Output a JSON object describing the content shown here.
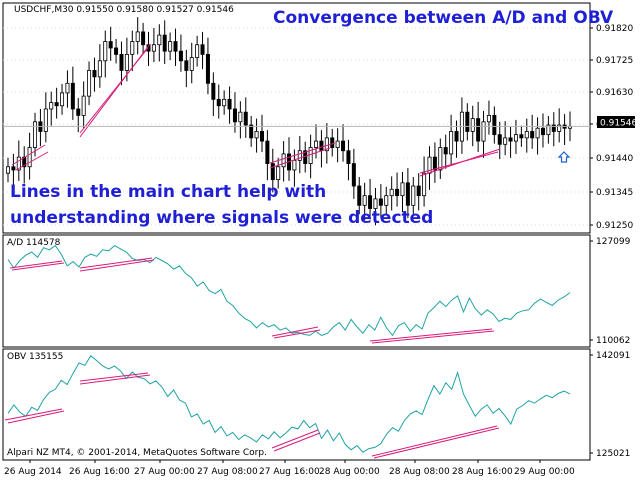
{
  "annotations": {
    "title": "Convergence between A/D and OBV",
    "note_line1": "Lines in the main chart help with",
    "note_line2": "understanding where signals were detected"
  },
  "price_panel": {
    "header": "USDCHF,M30  0.91550 0.91580 0.91527 0.91546",
    "current_price_label": "0.91546"
  },
  "ad_panel": {
    "header": "A/D 114578"
  },
  "obv_panel": {
    "header": "OBV 135155"
  },
  "footer_text": "Alpari NZ MT4, © 2001-2014, MetaQuotes Software Corp.",
  "colors": {
    "candle": "#000000",
    "indicator_line": "#1fa3a3",
    "trend_line": "#d81b7a",
    "annotation_text": "#1f1fd6",
    "arrow": "#1f5fcf"
  },
  "chart_data": [
    {
      "type": "candlestick",
      "symbol": "USDCHF",
      "timeframe": "M30",
      "ohlc_header": {
        "open": 0.9155,
        "high": 0.9158,
        "low": 0.91527,
        "close": 0.91546
      },
      "ylim": [
        0.9122,
        0.9193
      ],
      "yticks": [
        "0.91820",
        "0.91725",
        "0.91630",
        "0.91535",
        "0.91440",
        "0.91345",
        "0.91250"
      ],
      "current_price": 0.91546,
      "close_series": [
        0.9142,
        0.9141,
        0.9145,
        0.9142,
        0.9148,
        0.9156,
        0.9153,
        0.916,
        0.9162,
        0.9161,
        0.9165,
        0.9168,
        0.916,
        0.9158,
        0.9164,
        0.9172,
        0.917,
        0.9175,
        0.9181,
        0.9179,
        0.9177,
        0.9172,
        0.9177,
        0.9181,
        0.9184,
        0.918,
        0.9178,
        0.918,
        0.9183,
        0.9178,
        0.9181,
        0.9178,
        0.9175,
        0.9172,
        0.9176,
        0.918,
        0.9177,
        0.9168,
        0.9163,
        0.9161,
        0.9163,
        0.916,
        0.9156,
        0.9159,
        0.9155,
        0.9151,
        0.9153,
        0.915,
        0.9143,
        0.9138,
        0.9142,
        0.9146,
        0.9141,
        0.9144,
        0.9147,
        0.9143,
        0.9148,
        0.915,
        0.9147,
        0.9151,
        0.9148,
        0.915,
        0.9147,
        0.9143,
        0.9136,
        0.913,
        0.9133,
        0.9129,
        0.9132,
        0.913,
        0.9133,
        0.9135,
        0.9133,
        0.9137,
        0.913,
        0.9136,
        0.9133,
        0.914,
        0.9145,
        0.9141,
        0.9148,
        0.9146,
        0.9153,
        0.915,
        0.9159,
        0.9153,
        0.9157,
        0.915,
        0.9156,
        0.9158,
        0.9152,
        0.9149,
        0.9151,
        0.915,
        0.9152,
        0.9151,
        0.9153,
        0.9151,
        0.9154,
        0.9152,
        0.9155,
        0.9153,
        0.9155,
        0.9154,
        0.91546
      ]
    },
    {
      "type": "line",
      "name": "A/D",
      "header_value": 114578,
      "ylim": [
        110062,
        127099
      ],
      "yticks": [
        "127099",
        "110062"
      ],
      "values": [
        117.7,
        116.9,
        117.6,
        118.1,
        118.4,
        117.9,
        118.8,
        118.6,
        119.0,
        118.2,
        117.1,
        117.5,
        117.0,
        117.9,
        118.2,
        118.0,
        118.6,
        118.5,
        119.0,
        118.7,
        118.4,
        117.8,
        117.6,
        117.7,
        117.4,
        117.9,
        117.6,
        117.3,
        116.8,
        117.1,
        116.4,
        116.0,
        115.2,
        115.6,
        114.8,
        114.5,
        114.9,
        113.8,
        113.4,
        112.7,
        112.2,
        111.9,
        111.3,
        111.8,
        111.4,
        111.6,
        111.1,
        111.3,
        110.8,
        110.9,
        110.7,
        110.6,
        111.0,
        110.6,
        110.8,
        111.4,
        111.8,
        111.1,
        112.1,
        111.4,
        110.8,
        111.6,
        111.1,
        112.3,
        111.3,
        110.6,
        111.5,
        111.8,
        111.0,
        111.6,
        111.2,
        112.7,
        113.2,
        113.8,
        113.3,
        113.9,
        114.3,
        112.8,
        114.1,
        113.1,
        112.5,
        113.0,
        112.6,
        111.9,
        112.2,
        112.1,
        112.7,
        112.9,
        113.0,
        113.6,
        114.0,
        113.7,
        113.4,
        113.9,
        114.2,
        114.6
      ]
    },
    {
      "type": "line",
      "name": "OBV",
      "header_value": 135155,
      "ylim": [
        125021,
        142091
      ],
      "yticks": [
        "142091",
        "125021"
      ],
      "values": [
        132.0,
        133.4,
        132.2,
        131.5,
        133.0,
        132.5,
        134.3,
        135.5,
        136.0,
        137.5,
        136.8,
        138.7,
        140.4,
        140.0,
        141.6,
        140.8,
        139.9,
        139.4,
        139.9,
        139.1,
        137.8,
        138.9,
        138.0,
        137.8,
        136.9,
        137.4,
        136.4,
        134.8,
        135.9,
        134.2,
        133.7,
        131.4,
        131.9,
        130.2,
        130.8,
        128.8,
        129.8,
        128.2,
        128.8,
        127.6,
        128.4,
        127.9,
        127.2,
        128.4,
        127.7,
        128.9,
        127.9,
        128.7,
        129.7,
        129.4,
        130.8,
        129.6,
        130.3,
        127.8,
        129.2,
        127.4,
        128.7,
        126.8,
        125.9,
        126.6,
        125.5,
        126.1,
        126.3,
        126.9,
        128.5,
        129.6,
        129.0,
        130.8,
        131.9,
        132.4,
        131.8,
        134.3,
        136.6,
        135.2,
        137.1,
        136.0,
        138.8,
        135.2,
        133.3,
        131.5,
        132.7,
        133.4,
        132.0,
        132.8,
        131.6,
        130.2,
        132.7,
        133.3,
        134.1,
        133.7,
        134.4,
        135.0,
        134.6,
        135.3,
        135.7,
        135.2
      ]
    }
  ],
  "x_axis": {
    "labels": [
      "26 Aug 2014",
      "26 Aug 16:00",
      "27 Aug 00:00",
      "27 Aug 08:00",
      "27 Aug 16:00",
      "28 Aug 00:00",
      "28 Aug 08:00",
      "28 Aug 16:00",
      "29 Aug 00:00"
    ]
  }
}
